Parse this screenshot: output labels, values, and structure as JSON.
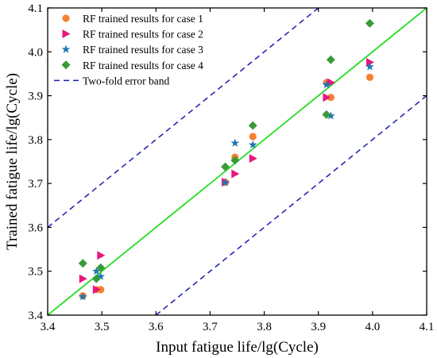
{
  "chart_data": {
    "type": "scatter",
    "xlabel": "Input fatigue life/lg(Cycle)",
    "ylabel": "Trained fatigue life/lg(Cycle)",
    "xlim": [
      3.4,
      4.1
    ],
    "ylim": [
      3.4,
      4.1
    ],
    "xticks": [
      "3.4",
      "3.5",
      "3.6",
      "3.7",
      "3.8",
      "3.9",
      "4.0",
      "4.1"
    ],
    "yticks": [
      "3.4",
      "3.5",
      "3.6",
      "3.7",
      "3.8",
      "3.9",
      "4.0",
      "4.1"
    ],
    "grid": false,
    "legend_position": "top-left",
    "series": [
      {
        "name": "RF trained results for case 1",
        "marker": "circle",
        "color": "#F58231",
        "points": [
          [
            3.465,
            3.444
          ],
          [
            3.49,
            3.458
          ],
          [
            3.498,
            3.458
          ],
          [
            3.728,
            3.703
          ],
          [
            3.746,
            3.76
          ],
          [
            3.779,
            3.807
          ],
          [
            3.915,
            3.93
          ],
          [
            3.923,
            3.896
          ],
          [
            3.995,
            3.942
          ]
        ]
      },
      {
        "name": "RF trained results for case 2",
        "marker": "triangle-right",
        "color": "#E8177F",
        "points": [
          [
            3.465,
            3.483
          ],
          [
            3.49,
            3.458
          ],
          [
            3.498,
            3.536
          ],
          [
            3.728,
            3.703
          ],
          [
            3.746,
            3.722
          ],
          [
            3.779,
            3.757
          ],
          [
            3.915,
            3.896
          ],
          [
            3.923,
            3.93
          ],
          [
            3.995,
            3.976
          ]
        ]
      },
      {
        "name": "RF trained results for case 3",
        "marker": "star",
        "color": "#1F77B4",
        "points": [
          [
            3.465,
            3.442
          ],
          [
            3.49,
            3.5
          ],
          [
            3.498,
            3.488
          ],
          [
            3.728,
            3.702
          ],
          [
            3.746,
            3.792
          ],
          [
            3.779,
            3.788
          ],
          [
            3.915,
            3.925
          ],
          [
            3.923,
            3.854
          ],
          [
            3.995,
            3.966
          ]
        ]
      },
      {
        "name": "RF trained results for case 4",
        "marker": "diamond",
        "color": "#3A9A3A",
        "points": [
          [
            3.465,
            3.518
          ],
          [
            3.49,
            3.483
          ],
          [
            3.498,
            3.508
          ],
          [
            3.728,
            3.738
          ],
          [
            3.746,
            3.753
          ],
          [
            3.779,
            3.832
          ],
          [
            3.915,
            3.857
          ],
          [
            3.923,
            3.982
          ],
          [
            3.995,
            4.065
          ]
        ]
      }
    ],
    "reference_lines": [
      {
        "name": "",
        "style": "solid",
        "color": "#22DD22",
        "points": [
          [
            3.4,
            3.4
          ],
          [
            4.1,
            4.1
          ]
        ]
      },
      {
        "name": "Two-fold error band",
        "style": "dashed",
        "color": "#1A1AB0",
        "points": [
          [
            3.4,
            3.6
          ],
          [
            3.9,
            4.1
          ]
        ]
      },
      {
        "name": "",
        "style": "dashed",
        "color": "#1A1AB0",
        "points": [
          [
            3.6,
            3.4
          ],
          [
            4.1,
            3.9
          ]
        ]
      }
    ]
  }
}
